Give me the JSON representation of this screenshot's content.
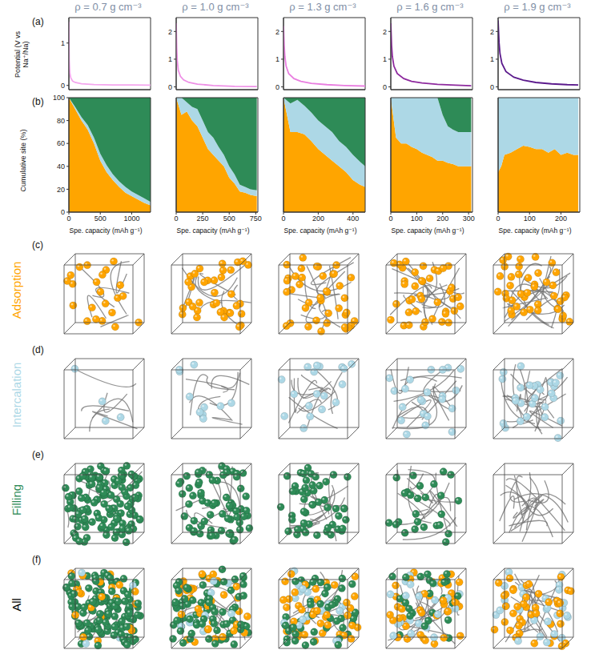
{
  "figure": {
    "panels": [
      "(a)",
      "(b)",
      "(c)",
      "(d)",
      "(e)",
      "(f)"
    ],
    "rows": [
      {
        "label": "Adsorption",
        "color": "#ffa500"
      },
      {
        "label": "Intercalation",
        "color": "#add8e6"
      },
      {
        "label": "Filling",
        "color": "#2e8b57"
      },
      {
        "label": "All",
        "color": "#000000"
      }
    ]
  },
  "chart_data": [
    {
      "type": "line",
      "title": "ρ = 0.7 g cm⁻³",
      "ylabel": "Potential (V vs Na⁺/Na)",
      "x": [
        0,
        5,
        15,
        30,
        60,
        100,
        200,
        400,
        700,
        1000,
        1300
      ],
      "values": [
        1.5,
        0.6,
        0.3,
        0.18,
        0.1,
        0.07,
        0.04,
        0.02,
        0.01,
        0.01,
        0.005
      ],
      "color": "#f4a6ee",
      "xlim": [
        0,
        1300
      ],
      "xticks": [
        0,
        500,
        1000
      ],
      "ylim": [
        -0.1,
        1.6
      ],
      "yticks": [
        0,
        1
      ],
      "tick_labels": "y"
    },
    {
      "type": "line",
      "title": "ρ = 1.0 g cm⁻³",
      "x": [
        0,
        5,
        10,
        20,
        40,
        70,
        120,
        200,
        350,
        550,
        760
      ],
      "values": [
        2.3,
        1.4,
        0.95,
        0.6,
        0.38,
        0.25,
        0.16,
        0.1,
        0.05,
        0.02,
        0.01
      ],
      "color": "#ee90e6",
      "xlim": [
        0,
        770
      ],
      "xticks": [
        0,
        250,
        500,
        750
      ],
      "ylim": [
        -0.1,
        2.5
      ],
      "yticks": [
        0,
        1,
        2
      ],
      "tick_labels": "y"
    },
    {
      "type": "line",
      "title": "ρ = 1.3 g cm⁻³",
      "x": [
        0,
        4,
        8,
        15,
        30,
        60,
        100,
        160,
        250,
        350,
        470
      ],
      "values": [
        2.2,
        1.5,
        1.1,
        0.75,
        0.48,
        0.3,
        0.2,
        0.13,
        0.08,
        0.05,
        0.03
      ],
      "color": "#e97ee0",
      "xlim": [
        0,
        470
      ],
      "xticks": [
        0,
        200,
        400
      ],
      "ylim": [
        -0.1,
        2.5
      ],
      "yticks": [
        0,
        1,
        2
      ],
      "tick_labels": "y"
    },
    {
      "type": "line",
      "title": "ρ = 1.6 g cm⁻³",
      "x": [
        0,
        3,
        6,
        12,
        25,
        50,
        80,
        120,
        180,
        250,
        310
      ],
      "values": [
        2.3,
        1.5,
        1.1,
        0.75,
        0.48,
        0.3,
        0.2,
        0.14,
        0.09,
        0.06,
        0.04
      ],
      "color": "#8e2a9e",
      "xlim": [
        0,
        315
      ],
      "xticks": [
        0,
        100,
        200,
        300
      ],
      "ylim": [
        -0.1,
        2.5
      ],
      "yticks": [
        0,
        1,
        2
      ],
      "tick_labels": "y"
    },
    {
      "type": "line",
      "title": "ρ = 1.9 g cm⁻³",
      "x": [
        0,
        3,
        6,
        12,
        25,
        50,
        80,
        120,
        170,
        220,
        255
      ],
      "values": [
        2.4,
        1.6,
        1.2,
        0.85,
        0.55,
        0.35,
        0.24,
        0.16,
        0.11,
        0.08,
        0.07
      ],
      "color": "#5b1a8c",
      "xlim": [
        0,
        260
      ],
      "xticks": [
        0,
        100,
        200
      ],
      "ylim": [
        -0.1,
        2.5
      ],
      "yticks": [
        0,
        1,
        2
      ],
      "tick_labels": "y"
    },
    {
      "type": "area",
      "stacked": true,
      "ylabel": "Cumulative site (%)",
      "xlabel": "Spe. capacity (mAh g⁻¹)",
      "x": [
        0,
        100,
        200,
        300,
        400,
        500,
        600,
        700,
        800,
        900,
        1000,
        1100,
        1200,
        1300
      ],
      "series": [
        {
          "name": "Adsorption",
          "color": "#ffa500",
          "values": [
            100,
            90,
            80,
            72,
            60,
            45,
            35,
            28,
            22,
            17,
            14,
            11,
            8,
            6
          ]
        },
        {
          "name": "Intercalation",
          "color": "#add8e6",
          "values": [
            0,
            2,
            3,
            4,
            5,
            6,
            6,
            5,
            5,
            5,
            4,
            4,
            4,
            3
          ]
        },
        {
          "name": "Filling",
          "color": "#2e8b57",
          "values": [
            0,
            8,
            17,
            24,
            35,
            49,
            59,
            67,
            73,
            78,
            82,
            85,
            88,
            91
          ]
        }
      ],
      "xlim": [
        0,
        1300
      ],
      "xticks": [
        0,
        500,
        1000
      ],
      "ylim": [
        0,
        100
      ],
      "yticks": [
        0,
        20,
        40,
        60,
        80,
        100
      ]
    },
    {
      "type": "area",
      "stacked": true,
      "xlabel": "Spe. capacity (mAh g⁻¹)",
      "x": [
        0,
        50,
        100,
        150,
        200,
        250,
        300,
        350,
        400,
        450,
        500,
        550,
        600,
        650,
        700,
        760
      ],
      "series": [
        {
          "name": "Adsorption",
          "color": "#ffa500",
          "values": [
            100,
            85,
            88,
            80,
            75,
            65,
            55,
            50,
            45,
            40,
            30,
            25,
            18,
            17,
            15,
            14
          ]
        },
        {
          "name": "Intercalation",
          "color": "#add8e6",
          "values": [
            0,
            15,
            8,
            12,
            15,
            15,
            15,
            15,
            12,
            10,
            10,
            8,
            6,
            5,
            5,
            5
          ]
        },
        {
          "name": "Filling",
          "color": "#2e8b57",
          "values": [
            0,
            0,
            4,
            8,
            10,
            20,
            30,
            35,
            43,
            50,
            60,
            67,
            76,
            78,
            80,
            81
          ]
        }
      ],
      "xlim": [
        0,
        770
      ],
      "xticks": [
        0,
        250,
        500,
        750
      ],
      "ylim": [
        0,
        100
      ],
      "yticks": [
        0,
        20,
        40,
        60,
        80,
        100
      ],
      "tick_labels": "x"
    },
    {
      "type": "area",
      "stacked": true,
      "xlabel": "Spe. capacity (mAh g⁻¹)",
      "x": [
        0,
        40,
        80,
        120,
        160,
        200,
        240,
        280,
        320,
        360,
        400,
        440,
        470
      ],
      "series": [
        {
          "name": "Adsorption",
          "color": "#ffa500",
          "values": [
            100,
            70,
            70,
            68,
            62,
            55,
            50,
            45,
            40,
            35,
            28,
            24,
            22
          ]
        },
        {
          "name": "Intercalation",
          "color": "#add8e6",
          "values": [
            0,
            25,
            28,
            25,
            25,
            25,
            25,
            25,
            22,
            22,
            22,
            20,
            18
          ]
        },
        {
          "name": "Filling",
          "color": "#2e8b57",
          "values": [
            0,
            5,
            2,
            7,
            13,
            20,
            25,
            30,
            38,
            43,
            50,
            56,
            60
          ]
        }
      ],
      "xlim": [
        0,
        470
      ],
      "xticks": [
        0,
        200,
        400
      ],
      "ylim": [
        0,
        100
      ],
      "yticks": [
        0,
        20,
        40,
        60,
        80,
        100
      ],
      "tick_labels": "x"
    },
    {
      "type": "area",
      "stacked": true,
      "xlabel": "Spe. capacity (mAh g⁻¹)",
      "x": [
        0,
        20,
        40,
        60,
        80,
        100,
        120,
        140,
        160,
        180,
        200,
        220,
        240,
        260,
        280,
        300,
        310
      ],
      "series": [
        {
          "name": "Adsorption",
          "color": "#ffa500",
          "values": [
            100,
            65,
            60,
            60,
            57,
            55,
            52,
            50,
            48,
            45,
            45,
            43,
            42,
            40,
            40,
            40,
            40
          ]
        },
        {
          "name": "Intercalation",
          "color": "#add8e6",
          "values": [
            0,
            35,
            40,
            40,
            43,
            45,
            48,
            50,
            52,
            55,
            40,
            32,
            30,
            30,
            30,
            30,
            30
          ]
        },
        {
          "name": "Filling",
          "color": "#2e8b57",
          "values": [
            0,
            0,
            0,
            0,
            0,
            0,
            0,
            0,
            0,
            0,
            15,
            25,
            28,
            30,
            30,
            30,
            30
          ]
        }
      ],
      "xlim": [
        0,
        315
      ],
      "xticks": [
        0,
        100,
        200,
        300
      ],
      "ylim": [
        0,
        100
      ],
      "yticks": [
        0,
        20,
        40,
        60,
        80,
        100
      ],
      "tick_labels": "x"
    },
    {
      "type": "area",
      "stacked": true,
      "xlabel": "Spe. capacity (mAh g⁻¹)",
      "x": [
        0,
        10,
        20,
        40,
        60,
        80,
        100,
        120,
        140,
        160,
        180,
        200,
        220,
        240,
        255
      ],
      "series": [
        {
          "name": "Adsorption",
          "color": "#ffa500",
          "values": [
            35,
            40,
            50,
            52,
            55,
            58,
            57,
            55,
            55,
            52,
            55,
            50,
            52,
            50,
            50
          ]
        },
        {
          "name": "Intercalation",
          "color": "#add8e6",
          "values": [
            65,
            60,
            50,
            48,
            45,
            42,
            43,
            45,
            45,
            48,
            45,
            50,
            48,
            50,
            50
          ]
        },
        {
          "name": "Filling",
          "color": "#2e8b57",
          "values": [
            0,
            0,
            0,
            0,
            0,
            0,
            0,
            0,
            0,
            0,
            0,
            0,
            0,
            0,
            0
          ]
        }
      ],
      "xlim": [
        0,
        260
      ],
      "xticks": [
        0,
        100,
        200
      ],
      "ylim": [
        0,
        100
      ],
      "yticks": [
        0,
        20,
        40,
        60,
        80,
        100
      ],
      "tick_labels": "x"
    }
  ]
}
